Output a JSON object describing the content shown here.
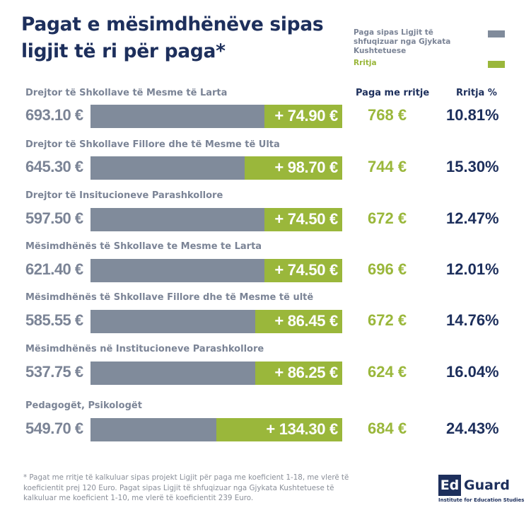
{
  "title": [
    "Pagat e mësimdhënëve sipas",
    "ligjit të ri për paga*"
  ],
  "legend": {
    "base_label": "Paga sipas Ligjit të shfuqizuar nga Gjykata Kushtetuese",
    "increase_label": "Rritja"
  },
  "colors": {
    "base": "#808b9b",
    "increase": "#9ab73b",
    "navy": "#1d2f5c",
    "grey_text": "#7b8496"
  },
  "columns": {
    "total": "Paga me rritje",
    "pct": "Rritja %"
  },
  "footnote": "* Pagat me rritje të kalkuluar sipas projekt Ligjit për paga me koeficient 1-18, me vlerë të koeficientit prej 120 Euro. Pagat sipas Ligjit të shfuqizuar nga Gjykata Kushtetuese të kalkuluar me koeficient 1-10, me vlerë të koeficientit 239 Euro.",
  "logo": {
    "box": "Ed",
    "word": "Guard",
    "subtitle": "Institute for Education Studies"
  },
  "chart_data": {
    "type": "bar",
    "orientation": "horizontal-stacked",
    "title": "Pagat e mësimdhënëve sipas ligjit të ri për paga*",
    "legend": [
      "Paga sipas Ligjit të shfuqizuar nga Gjykata Kushtetuese",
      "Rritja"
    ],
    "legend_position": "top-right",
    "unit": "€",
    "categories": [
      "Drejtor të Shkollave të Mesme të Larta",
      "Drejtor të Shkollave Fillore dhe të Mesme të Ulta",
      "Drejtor të Insitucioneve Parashkollore",
      "Mësimdhënës të Shkollave te Mesme te Larta",
      "Mësimdhënës të Shkollave Fillore dhe të Mesme të ultë",
      "Mësimdhënës në Institucioneve Parashkollore",
      "Pedagogët, Psikologët"
    ],
    "series": [
      {
        "name": "Paga sipas Ligjit të shfuqizuar nga Gjykata Kushtetuese",
        "values": [
          693.1,
          645.3,
          597.5,
          621.4,
          585.55,
          537.75,
          549.7
        ],
        "labels": [
          "693.10 €",
          "645.30 €",
          "597.50 €",
          "621.40 €",
          "585.55 €",
          "537.75 €",
          "549.70 €"
        ]
      },
      {
        "name": "Rritja",
        "values": [
          74.9,
          98.7,
          74.5,
          74.5,
          86.45,
          86.25,
          134.3
        ],
        "labels": [
          "+ 74.90 €",
          "+ 98.70 €",
          "+ 74.50 €",
          "+ 74.50 €",
          "+ 86.45 €",
          "+ 86.25 €",
          "+ 134.30 €"
        ]
      }
    ],
    "totals": [
      768,
      744,
      672,
      696,
      672,
      624,
      684
    ],
    "total_labels": [
      "768 €",
      "744 €",
      "672 €",
      "696 €",
      "672 €",
      "624 €",
      "684 €"
    ],
    "pct_increase": [
      10.81,
      15.3,
      12.47,
      12.01,
      14.76,
      16.04,
      24.43
    ],
    "pct_labels": [
      "10.81%",
      "15.30%",
      "12.47%",
      "12.01%",
      "14.76%",
      "16.04%",
      "24.43%"
    ]
  }
}
